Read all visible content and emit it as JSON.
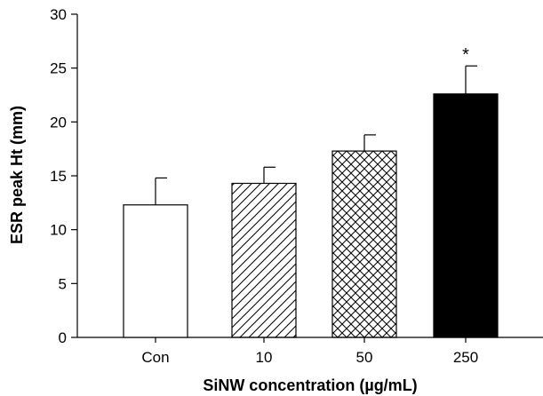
{
  "chart_data": {
    "type": "bar",
    "title": "",
    "xlabel": "SiNW concentration (µg/mL)",
    "ylabel": "ESR peak Ht (mm)",
    "ylim": [
      0,
      30
    ],
    "yticks": [
      0,
      5,
      10,
      15,
      20,
      25,
      30
    ],
    "categories": [
      "Con",
      "10",
      "50",
      "250"
    ],
    "values": [
      12.3,
      14.3,
      17.3,
      22.6
    ],
    "errors": [
      2.5,
      1.5,
      1.5,
      2.6
    ],
    "fills": [
      "white",
      "diagonal-hatch",
      "crosshatch",
      "black"
    ],
    "annotations": [
      "",
      "",
      "",
      "*"
    ],
    "grid": false,
    "colors": {
      "bar_stroke": "#000000",
      "solid_fill": "#000000",
      "background": "#ffffff"
    }
  }
}
